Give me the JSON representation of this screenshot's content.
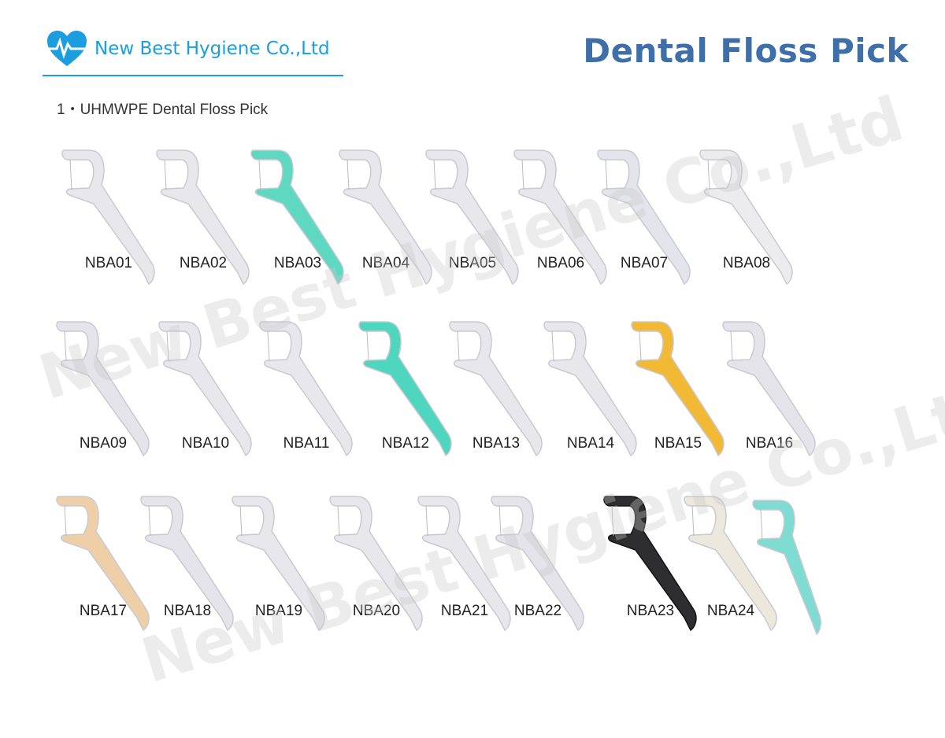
{
  "header": {
    "company": "New Best Hygiene Co.,Ltd",
    "logo_icon": "heart-pulse-icon",
    "brand_color": "#1a9ee0",
    "title": "Dental Floss Pick",
    "title_color": "#3f6fa8"
  },
  "section_title": "1・UHMWPE  Dental Floss Pick",
  "watermark": "New Best Hygiene Co.,Ltd",
  "products": [
    {
      "code": "NBA01",
      "color": "#e8e8ec"
    },
    {
      "code": "NBA02",
      "color": "#e8e8ec"
    },
    {
      "code": "NBA03",
      "color": "#5fd8c2"
    },
    {
      "code": "NBA04",
      "color": "#e8e8ec"
    },
    {
      "code": "NBA05",
      "color": "#e8e8ec"
    },
    {
      "code": "NBA06",
      "color": "#e8e8ec"
    },
    {
      "code": "NBA07",
      "color": "#e4e4ec"
    },
    {
      "code": "NBA08",
      "color": "#ececee"
    },
    {
      "code": "NBA09",
      "color": "#e4e4ea"
    },
    {
      "code": "NBA10",
      "color": "#e8e8ec"
    },
    {
      "code": "NBA11",
      "color": "#e8e8ec"
    },
    {
      "code": "NBA12",
      "color": "#4fd6bf"
    },
    {
      "code": "NBA13",
      "color": "#e8e8ec"
    },
    {
      "code": "NBA14",
      "color": "#e8e8ec"
    },
    {
      "code": "NBA15",
      "color": "#f2b935"
    },
    {
      "code": "NBA16",
      "color": "#e4e4ea"
    },
    {
      "code": "NBA17",
      "color": "#efcfa8"
    },
    {
      "code": "NBA18",
      "color": "#e4e4ea"
    },
    {
      "code": "NBA19",
      "color": "#e8e8ec"
    },
    {
      "code": "NBA20",
      "color": "#e8e8ec"
    },
    {
      "code": "NBA21",
      "color": "#e8e8ec"
    },
    {
      "code": "NBA22",
      "color": "#e4e4ea"
    },
    {
      "code": "NBA23",
      "color": "#2e2e30"
    },
    {
      "code": "NBA24",
      "color": "#ece8dc"
    }
  ],
  "extra_pick_color": "#7fdcd2"
}
